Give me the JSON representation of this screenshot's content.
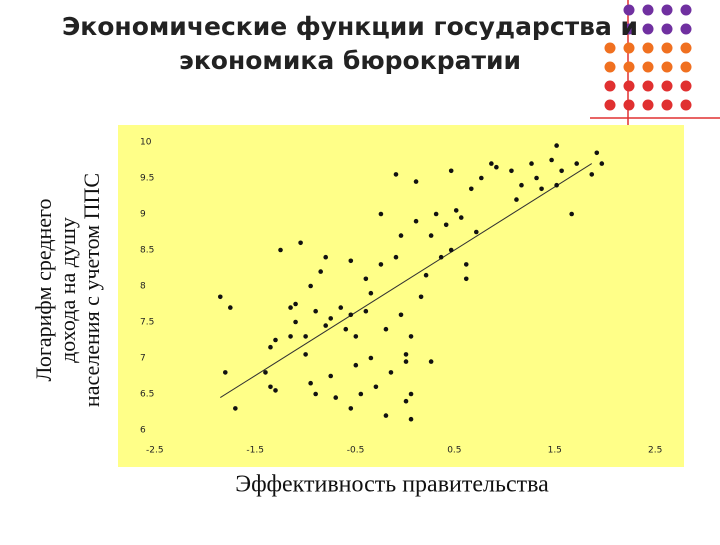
{
  "chart_data": {
    "type": "scatter",
    "title": [
      "Экономические функции государства и",
      "экономика бюрократии"
    ],
    "ylabel": [
      "Логарифм среднего",
      "дохода на душу",
      "населения с учетом ППС"
    ],
    "xlabel": "Эффективность правительства",
    "xlim": [
      -2.5,
      2.5
    ],
    "xticks": [
      -2.5,
      -1.5,
      -0.5,
      0.5,
      1.5,
      2.5
    ],
    "ylim": [
      6,
      10
    ],
    "yticks": [
      6,
      6.5,
      7,
      7.5,
      8,
      8.5,
      9,
      9.5,
      10
    ],
    "color": "#111111",
    "background": "#ffff88",
    "x": [
      -1.8,
      -1.7,
      -1.75,
      -1.65,
      -1.35,
      -1.3,
      -1.25,
      -1.2,
      -1.3,
      -1.25,
      -1.1,
      -1.1,
      -1.05,
      -1.0,
      -0.95,
      -1.05,
      -0.95,
      -0.9,
      -0.85,
      -0.8,
      -0.9,
      -0.85,
      -0.75,
      -0.75,
      -0.7,
      -0.7,
      -0.65,
      -0.6,
      -0.55,
      -0.5,
      -0.5,
      -0.45,
      -0.45,
      -0.5,
      -0.4,
      -0.35,
      -0.35,
      -0.3,
      -0.3,
      -0.25,
      -0.2,
      -0.2,
      -0.15,
      -0.1,
      -0.05,
      -0.05,
      0.0,
      0.0,
      0.05,
      0.1,
      0.1,
      0.15,
      0.15,
      0.2,
      0.25,
      0.3,
      0.3,
      0.35,
      0.4,
      0.45,
      0.5,
      0.5,
      0.55,
      0.6,
      0.65,
      0.65,
      0.7,
      0.75,
      0.8,
      0.9,
      0.95,
      1.1,
      1.15,
      1.2,
      1.3,
      1.35,
      1.4,
      1.5,
      1.55,
      1.6,
      1.7,
      1.75,
      1.9,
      1.95,
      2.0,
      1.55,
      0.05,
      0.1,
      -0.15,
      0.05
    ],
    "values": [
      7.85,
      7.7,
      6.8,
      6.3,
      6.8,
      7.15,
      7.25,
      8.5,
      6.6,
      6.55,
      7.3,
      7.7,
      7.75,
      8.6,
      7.3,
      7.5,
      7.05,
      6.65,
      6.5,
      8.2,
      8.0,
      7.65,
      7.45,
      8.4,
      7.55,
      6.75,
      6.45,
      7.7,
      7.4,
      8.35,
      7.6,
      7.3,
      6.9,
      6.3,
      6.5,
      7.65,
      8.1,
      7.0,
      7.9,
      6.6,
      8.3,
      9.0,
      7.4,
      6.8,
      8.4,
      9.55,
      8.7,
      7.6,
      6.95,
      6.5,
      6.15,
      8.9,
      9.45,
      7.85,
      8.15,
      8.7,
      6.95,
      9.0,
      8.4,
      8.85,
      9.6,
      8.5,
      9.05,
      8.95,
      8.3,
      8.1,
      9.35,
      8.75,
      9.5,
      9.7,
      9.65,
      9.6,
      9.2,
      9.4,
      9.7,
      9.5,
      9.35,
      9.75,
      9.4,
      9.6,
      9.0,
      9.7,
      9.55,
      9.85,
      9.7,
      9.95,
      7.05,
      7.3,
      6.2,
      6.4
    ],
    "trend_line": {
      "x": [
        -1.8,
        1.9
      ],
      "values": [
        6.45,
        9.7
      ]
    }
  }
}
